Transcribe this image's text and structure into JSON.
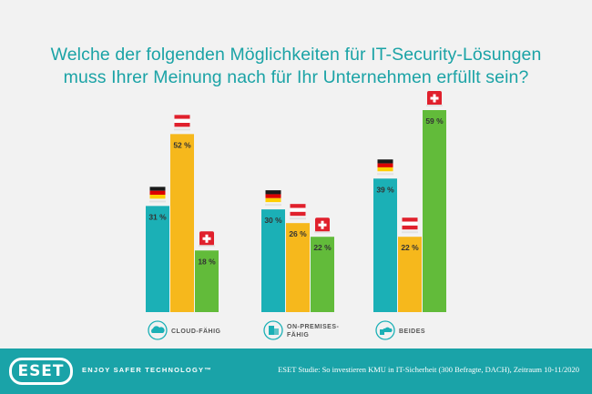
{
  "title": {
    "line1": "Welche der folgenden Möglichkeiten für IT-Security-Lösungen",
    "line2": "muss Ihrer Meinung nach für Ihr Unternehmen erfüllt sein?"
  },
  "colors": {
    "teal": "#1bb0b6",
    "yellow": "#f6b81c",
    "green": "#62bb3a",
    "title": "#1ba3a6",
    "footer": "#1aa3a8"
  },
  "chart_data": {
    "type": "bar",
    "title": "Welche der folgenden Möglichkeiten für IT-Security-Lösungen muss Ihrer Meinung nach für Ihr Unternehmen erfüllt sein?",
    "categories": [
      "CLOUD-FÄHIG",
      "ON-PREMISES-FÄHIG",
      "BEIDES"
    ],
    "category_lines": [
      [
        "CLOUD-FÄHIG"
      ],
      [
        "ON-PREMISES-",
        "FÄHIG"
      ],
      [
        "BEIDES"
      ]
    ],
    "category_icons": [
      "cloud-icon",
      "building-icon",
      "cloud-building-icon"
    ],
    "series": [
      {
        "name": "Deutschland",
        "flag": "de-flag-icon",
        "values": [
          31,
          30,
          39
        ]
      },
      {
        "name": "Österreich",
        "flag": "at-flag-icon",
        "values": [
          52,
          26,
          22
        ]
      },
      {
        "name": "Schweiz",
        "flag": "ch-flag-icon",
        "values": [
          18,
          22,
          59
        ]
      }
    ],
    "value_suffix": " %",
    "ylim": [
      0,
      59
    ],
    "xlabel": "",
    "ylabel": ""
  },
  "footer": {
    "logo": "ESET",
    "slogan": "ENJOY SAFER TECHNOLOGY™",
    "source": "ESET Studie: So investieren KMU in IT-Sicherheit (300 Befragte, DACH), Zeitraum 10-11/2020"
  }
}
